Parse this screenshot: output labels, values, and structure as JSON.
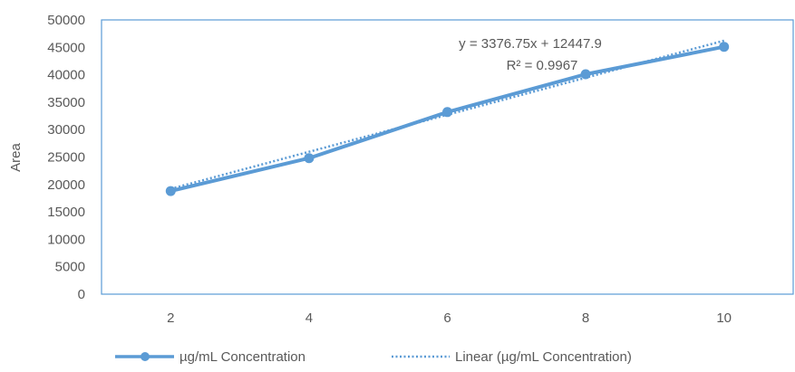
{
  "chart_data": {
    "type": "line",
    "title": "",
    "xlabel": "",
    "ylabel": "Area",
    "x": [
      2,
      4,
      6,
      8,
      10
    ],
    "series": [
      {
        "name": "µg/mL Concentration",
        "values": [
          18800,
          24800,
          33200,
          40100,
          45100
        ],
        "color": "#5B9BD5"
      }
    ],
    "trendline": {
      "name": "Linear (µg/mL Concentration)",
      "type": "linear",
      "slope": 3376.75,
      "intercept": 12447.9,
      "equation": "y = 3376.75x + 12447.9",
      "r_squared": "R² = 0.9967",
      "color": "#5B9BD5",
      "style": "dotted"
    },
    "y_ticks": [
      "0",
      "5000",
      "10000",
      "15000",
      "20000",
      "25000",
      "30000",
      "35000",
      "40000",
      "45000",
      "50000"
    ],
    "x_ticks": [
      "2",
      "4",
      "6",
      "8",
      "10"
    ],
    "ylim": [
      0,
      50000
    ],
    "xlim": [
      1,
      11
    ],
    "grid": false,
    "legend_position": "bottom"
  }
}
